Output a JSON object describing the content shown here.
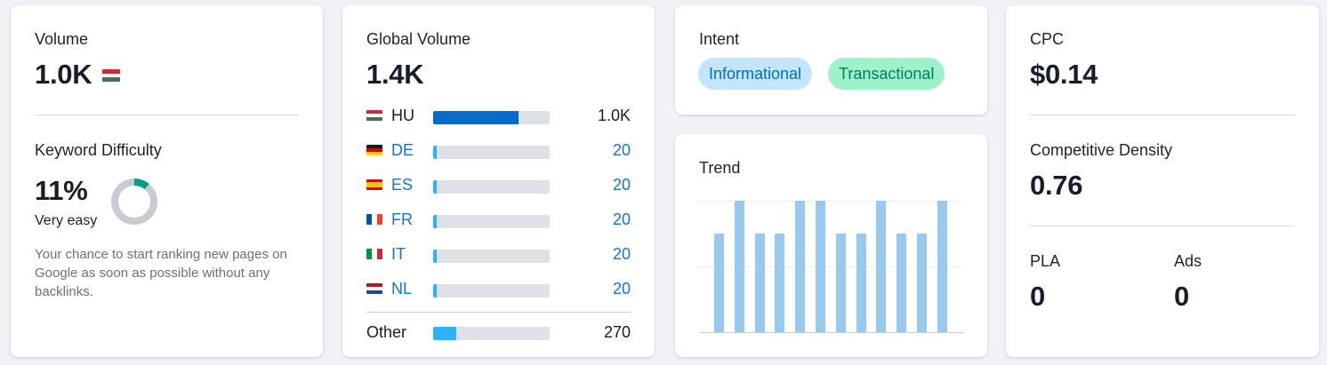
{
  "volume": {
    "label": "Volume",
    "value": "1.0K",
    "flag": "hungary-flag-icon"
  },
  "keyword_difficulty": {
    "label": "Keyword Difficulty",
    "value": "11%",
    "level": "Very easy",
    "percent": 11,
    "description": "Your chance to start ranking new pages on Google as soon as possible without any backlinks.",
    "colors": {
      "track": "#c9cbd3",
      "fill": "#009f81"
    }
  },
  "global_volume": {
    "label": "Global Volume",
    "value": "1.4K",
    "rows": [
      {
        "code": "HU",
        "value": "1.0K",
        "share": 0.73,
        "is_link": false,
        "flag": "hungary-flag-icon"
      },
      {
        "code": "DE",
        "value": "20",
        "share": 0.02,
        "is_link": true,
        "flag": "germany-flag-icon"
      },
      {
        "code": "ES",
        "value": "20",
        "share": 0.02,
        "is_link": true,
        "flag": "spain-flag-icon"
      },
      {
        "code": "FR",
        "value": "20",
        "share": 0.02,
        "is_link": true,
        "flag": "france-flag-icon"
      },
      {
        "code": "IT",
        "value": "20",
        "share": 0.02,
        "is_link": true,
        "flag": "italy-flag-icon"
      },
      {
        "code": "NL",
        "value": "20",
        "share": 0.02,
        "is_link": true,
        "flag": "netherlands-flag-icon"
      }
    ],
    "other": {
      "label": "Other",
      "value": "270",
      "share": 0.2
    },
    "colors": {
      "primary_bar": "#006dca",
      "other_bar": "#2bb3ff",
      "link": "#1576c6",
      "track": "#dfe1e8"
    }
  },
  "intent": {
    "label": "Intent",
    "tags": [
      {
        "label": "Informational",
        "bg": "#c4e5fe",
        "color": "#006dca"
      },
      {
        "label": "Transactional",
        "bg": "#9ef2c9",
        "color": "#007c65"
      }
    ]
  },
  "trend": {
    "label": "Trend",
    "values": [
      0.75,
      1,
      0.75,
      0.75,
      1,
      1,
      0.75,
      0.75,
      1,
      0.75,
      0.75,
      1
    ],
    "color": "#98c9ee"
  },
  "cpc": {
    "label": "CPC",
    "value": "$0.14"
  },
  "competitive_density": {
    "label": "Competitive Density",
    "value": "0.76"
  },
  "pla": {
    "label": "PLA",
    "value": "0"
  },
  "ads": {
    "label": "Ads",
    "value": "0"
  }
}
